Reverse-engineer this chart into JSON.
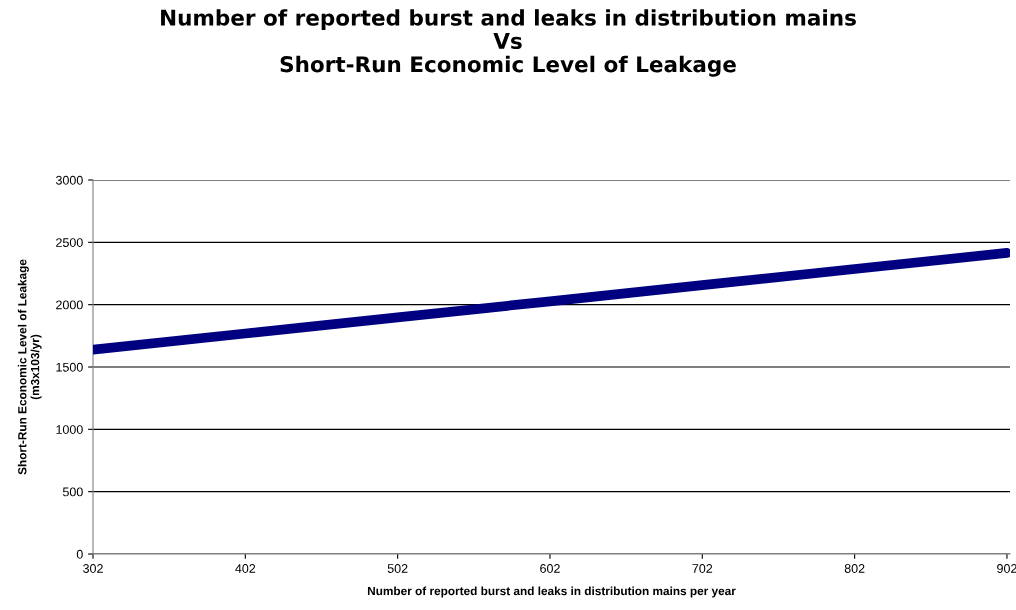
{
  "chart_data": {
    "type": "line",
    "title": "Number of reported burst and leaks in distribution mains\nVs\nShort-Run Economic Level of Leakage",
    "xlabel": "Number of reported burst and leaks in distribution mains per year",
    "ylabel": "Short-Run Economic Level of Leakage\n(m3x103/yr)",
    "x": [
      302,
      402,
      502,
      602,
      702,
      802,
      902
    ],
    "series": [
      {
        "color": "#000080",
        "values": [
          1640,
          1769,
          1898,
          2027,
          2157,
          2286,
          2415
        ]
      }
    ],
    "xlim": [
      302,
      904
    ],
    "xticks": [
      302,
      402,
      502,
      602,
      702,
      802,
      902
    ],
    "ylim": [
      0,
      3000
    ],
    "yticks": [
      0,
      500,
      1000,
      1500,
      2000,
      2500,
      3000
    ],
    "grid": "y",
    "legend": false,
    "marker": "none",
    "line_style": "solid"
  }
}
